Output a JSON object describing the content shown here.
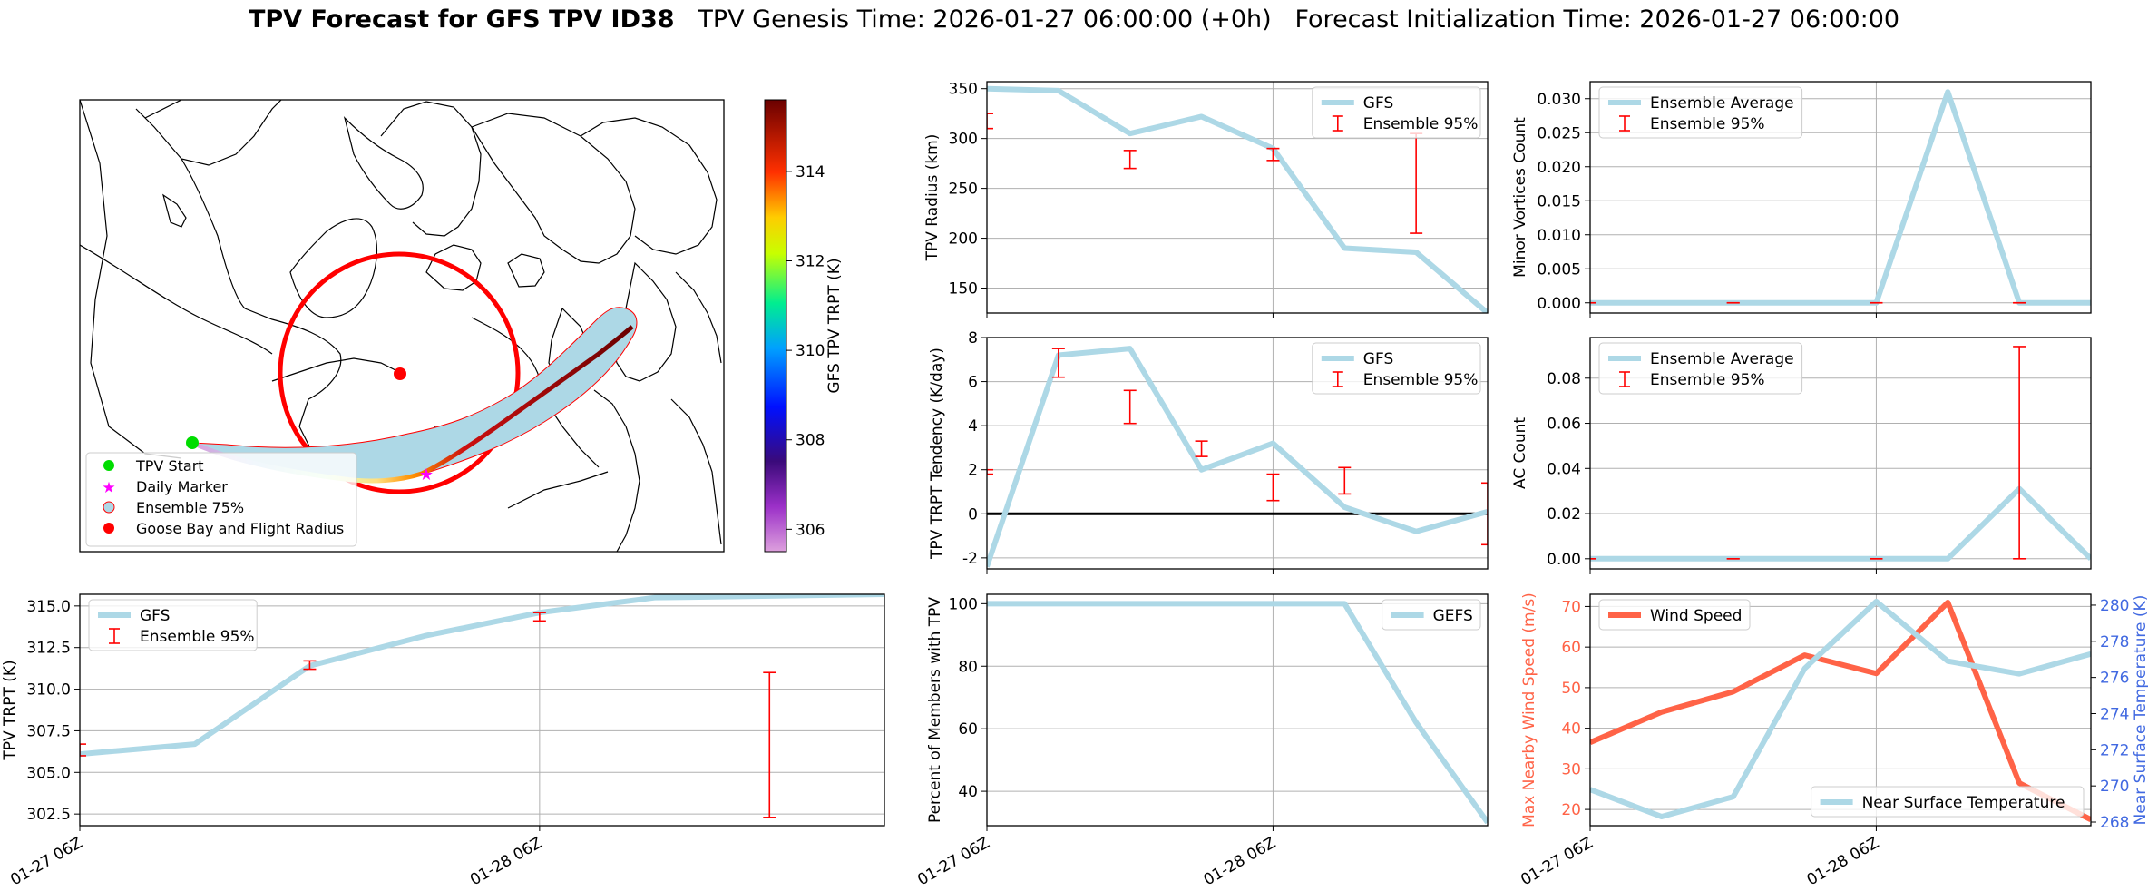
{
  "title": {
    "main": "TPV Forecast for GFS TPV ID38",
    "genesis": "TPV Genesis Time: 2026-01-27 06:00:00 (+0h)",
    "init": "Forecast Initialization Time: 2026-01-27 06:00:00"
  },
  "colors": {
    "gfs": "#add8e6",
    "error": "#ff0000",
    "zero_line": "#000000",
    "wind": "#ff6347",
    "temp_axis": "#4169e1",
    "wind_axis": "#ff6347",
    "circle": "#ff0000",
    "start": "#00dd00",
    "daily": "#ff00ff",
    "goose": "#ff0000"
  },
  "map": {
    "legend": [
      "TPV Start",
      "Daily Marker",
      "Ensemble 75%",
      "Goose Bay and Flight Radius"
    ],
    "colorbar": {
      "label": "GFS TPV TRPT (K)",
      "ticks": [
        306,
        308,
        310,
        312,
        314
      ],
      "range": [
        305.5,
        315.6
      ]
    }
  },
  "chart_data": [
    {
      "id": "radius",
      "type": "line",
      "ylabel": "TPV Radius (km)",
      "ylim": [
        125,
        357
      ],
      "yticks": [
        150,
        200,
        250,
        300,
        350
      ],
      "xlim": [
        0,
        7
      ],
      "grid_x": [
        0,
        4
      ],
      "series": [
        {
          "name": "GFS",
          "x": [
            0,
            1,
            2,
            3,
            4,
            5,
            6,
            7
          ],
          "values": [
            350,
            348,
            305,
            322,
            290,
            190,
            186,
            125
          ]
        }
      ],
      "errorbars": {
        "name": "Ensemble 95%",
        "x": [
          0,
          2,
          4,
          6
        ],
        "low": [
          310,
          270,
          278,
          205
        ],
        "high": [
          325,
          288,
          290,
          305
        ]
      },
      "legend": [
        "GFS",
        "Ensemble 95%"
      ],
      "legend_pos": "top-right"
    },
    {
      "id": "minor",
      "type": "line",
      "ylabel": "Minor Vortices Count",
      "ylim": [
        -0.0015,
        0.0325
      ],
      "yticks": [
        0.0,
        0.005,
        0.01,
        0.015,
        0.02,
        0.025,
        0.03
      ],
      "yticklabels": [
        "0.000",
        "0.005",
        "0.010",
        "0.015",
        "0.020",
        "0.025",
        "0.030"
      ],
      "xlim": [
        0,
        7
      ],
      "grid_x": [
        4
      ],
      "series": [
        {
          "name": "Ensemble Average",
          "x": [
            0,
            1,
            2,
            3,
            4,
            5,
            6,
            7
          ],
          "values": [
            0,
            0,
            0,
            0,
            0,
            0.031,
            0,
            0
          ]
        }
      ],
      "errorbars": {
        "name": "Ensemble 95%",
        "x": [
          0,
          2,
          4,
          6
        ],
        "low": [
          0,
          0,
          0,
          0
        ],
        "high": [
          0,
          0,
          0,
          0
        ]
      },
      "legend": [
        "Ensemble Average",
        "Ensemble 95%"
      ],
      "legend_pos": "top-left"
    },
    {
      "id": "tendency",
      "type": "line",
      "ylabel": "TPV TRPT Tendency (K/day)",
      "ylim": [
        -2.5,
        8
      ],
      "yticks": [
        -2,
        0,
        2,
        4,
        6,
        8
      ],
      "xlim": [
        0,
        7
      ],
      "grid_x": [
        0,
        4
      ],
      "hline": 0,
      "series": [
        {
          "name": "GFS",
          "x": [
            0,
            1,
            2,
            3,
            4,
            5,
            6,
            7
          ],
          "values": [
            -2.4,
            7.2,
            7.5,
            2.0,
            3.2,
            0.3,
            -0.8,
            0.1
          ]
        }
      ],
      "errorbars": {
        "name": "Ensemble 95%",
        "x": [
          0,
          1,
          2,
          3,
          4,
          5,
          7
        ],
        "low": [
          1.8,
          6.2,
          4.1,
          2.6,
          0.6,
          0.9,
          -1.4
        ],
        "high": [
          2.0,
          7.5,
          5.6,
          3.3,
          1.8,
          2.1,
          1.4
        ]
      },
      "legend": [
        "GFS",
        "Ensemble 95%"
      ],
      "legend_pos": "top-right"
    },
    {
      "id": "ac",
      "type": "line",
      "ylabel": "AC Count",
      "ylim": [
        -0.0045,
        0.098
      ],
      "yticks": [
        0.0,
        0.02,
        0.04,
        0.06,
        0.08
      ],
      "yticklabels": [
        "0.00",
        "0.02",
        "0.04",
        "0.06",
        "0.08"
      ],
      "xlim": [
        0,
        7
      ],
      "grid_x": [
        4
      ],
      "series": [
        {
          "name": "Ensemble Average",
          "x": [
            0,
            1,
            2,
            3,
            4,
            5,
            6,
            7
          ],
          "values": [
            0,
            0,
            0,
            0,
            0,
            0,
            0.031,
            0
          ]
        }
      ],
      "errorbars": {
        "name": "Ensemble 95%",
        "x": [
          0,
          2,
          4,
          6
        ],
        "low": [
          0,
          0,
          0,
          0
        ],
        "high": [
          0,
          0,
          0,
          0.094
        ]
      },
      "legend": [
        "Ensemble Average",
        "Ensemble 95%"
      ],
      "legend_pos": "top-left"
    },
    {
      "id": "trpt",
      "type": "line",
      "ylabel": "TPV TRPT (K)",
      "ylim": [
        301.8,
        315.7
      ],
      "yticks": [
        302.5,
        305.0,
        307.5,
        310.0,
        312.5,
        315.0
      ],
      "yticklabels": [
        "302.5",
        "305.0",
        "307.5",
        "310.0",
        "312.5",
        "315.0"
      ],
      "xlim": [
        0,
        7
      ],
      "grid_x": [
        0,
        4
      ],
      "xticks": [
        0,
        4
      ],
      "xticklabels": [
        "01-27 06Z",
        "01-28 06Z"
      ],
      "series": [
        {
          "name": "GFS",
          "x": [
            0,
            1,
            2,
            3,
            4,
            5,
            6,
            7
          ],
          "values": [
            306.1,
            306.7,
            311.4,
            313.2,
            314.6,
            315.5,
            315.6,
            315.7
          ]
        }
      ],
      "errorbars": {
        "name": "Ensemble 95%",
        "x": [
          0,
          2,
          4,
          6
        ],
        "low": [
          306.0,
          311.2,
          314.1,
          302.3
        ],
        "high": [
          306.7,
          311.7,
          314.6,
          311.0
        ]
      },
      "legend": [
        "GFS",
        "Ensemble 95%"
      ],
      "legend_pos": "top-left"
    },
    {
      "id": "members",
      "type": "line",
      "ylabel": "Percent of Members with TPV",
      "ylim": [
        29,
        103
      ],
      "yticks": [
        40,
        60,
        80,
        100
      ],
      "xlim": [
        0,
        7
      ],
      "grid_x": [
        0,
        4
      ],
      "xticks": [
        0,
        4
      ],
      "xticklabels": [
        "01-27 06Z",
        "01-28 06Z"
      ],
      "series": [
        {
          "name": "GEFS",
          "x": [
            0,
            1,
            2,
            3,
            4,
            5,
            6,
            7
          ],
          "values": [
            100,
            100,
            100,
            100,
            100,
            100,
            62,
            30
          ]
        }
      ],
      "legend": [
        "GEFS"
      ],
      "legend_pos": "top-right"
    },
    {
      "id": "wind",
      "type": "line",
      "dual_axis": true,
      "ylabel": "Max Nearby Wind Speed (m/s)",
      "ylim": [
        16,
        73
      ],
      "yticks": [
        20,
        30,
        40,
        50,
        60,
        70
      ],
      "y2label": "Near Surface Temperature (K)",
      "y2lim": [
        267.8,
        280.6
      ],
      "y2ticks": [
        268,
        270,
        272,
        274,
        276,
        278,
        280
      ],
      "xlim": [
        0,
        7
      ],
      "grid_x": [
        4
      ],
      "xticks": [
        0,
        4
      ],
      "xticklabels": [
        "01-27 06Z",
        "01-28 06Z"
      ],
      "series": [
        {
          "name": "Wind Speed",
          "axis": "left",
          "x": [
            0,
            1,
            2,
            3,
            4,
            5,
            6,
            7
          ],
          "values": [
            36.5,
            44,
            49,
            58,
            53.5,
            71,
            26.5,
            17.5
          ]
        },
        {
          "name": "Near Surface Temperature",
          "axis": "right",
          "x": [
            0,
            1,
            2,
            3,
            4,
            5,
            6,
            7
          ],
          "values": [
            269.8,
            268.3,
            269.4,
            276.5,
            280.2,
            276.9,
            276.2,
            277.3
          ]
        }
      ],
      "legend": [
        "Wind Speed",
        "Near Surface Temperature"
      ]
    }
  ]
}
